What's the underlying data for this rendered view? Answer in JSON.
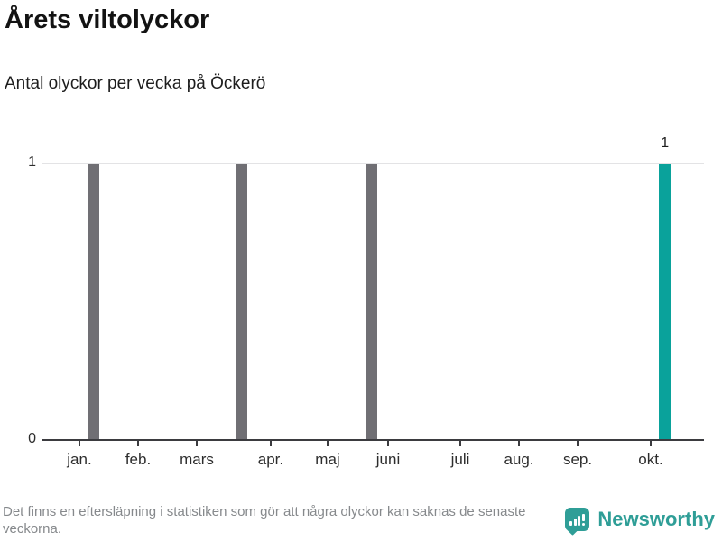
{
  "header": {
    "title": "Årets viltolyckor",
    "subtitle": "Antal olyckor per vecka på Öckerö"
  },
  "chart_data": {
    "type": "bar",
    "title": "Årets viltolyckor",
    "subtitle": "Antal olyckor per vecka på Öckerö",
    "x_unit": "vecka (week)",
    "ylim": [
      0,
      1
    ],
    "ytick_labels": [
      "0",
      "1"
    ],
    "grid": "horizontal gridline at y=1 only",
    "legend": "none",
    "value_label": "1",
    "bar_width_pct": 1.78,
    "xticks": [
      {
        "label": "jan.",
        "x_pct": 5.72
      },
      {
        "label": "feb.",
        "x_pct": 14.58
      },
      {
        "label": "mars",
        "x_pct": 23.43
      },
      {
        "label": "apr.",
        "x_pct": 34.6
      },
      {
        "label": "maj",
        "x_pct": 43.19
      },
      {
        "label": "juni",
        "x_pct": 52.32
      },
      {
        "label": "juli",
        "x_pct": 63.22
      },
      {
        "label": "aug.",
        "x_pct": 72.07
      },
      {
        "label": "sep.",
        "x_pct": 80.93
      },
      {
        "label": "okt.",
        "x_pct": 91.96
      }
    ],
    "bars": [
      {
        "period": "mid-januari week",
        "value": 1,
        "x_pct": 6.95,
        "color": "#706f74",
        "highlight": false
      },
      {
        "period": "late mars week",
        "value": 1,
        "x_pct": 29.29,
        "color": "#706f74",
        "highlight": false
      },
      {
        "period": "late maj/juni week",
        "value": 1,
        "x_pct": 48.91,
        "color": "#706f74",
        "highlight": false
      },
      {
        "period": "oktober (latest) week",
        "value": 1,
        "x_pct": 93.19,
        "color": "#0aa29b",
        "highlight": true
      }
    ],
    "colors": {
      "default_bar": "#706f74",
      "highlight_bar": "#0aa29b",
      "axis": "#3b3b3f",
      "gridline": "#e3e3e5"
    }
  },
  "footer": {
    "disclaimer": "Det finns en eftersläpning i statistiken som gör att några olyckor kan saknas de senaste veckorna.",
    "brand": "Newsworthy",
    "brand_color": "#2f9e97",
    "brand_icon": "speech-bubble-with-bar-chart-and-exclamation"
  }
}
